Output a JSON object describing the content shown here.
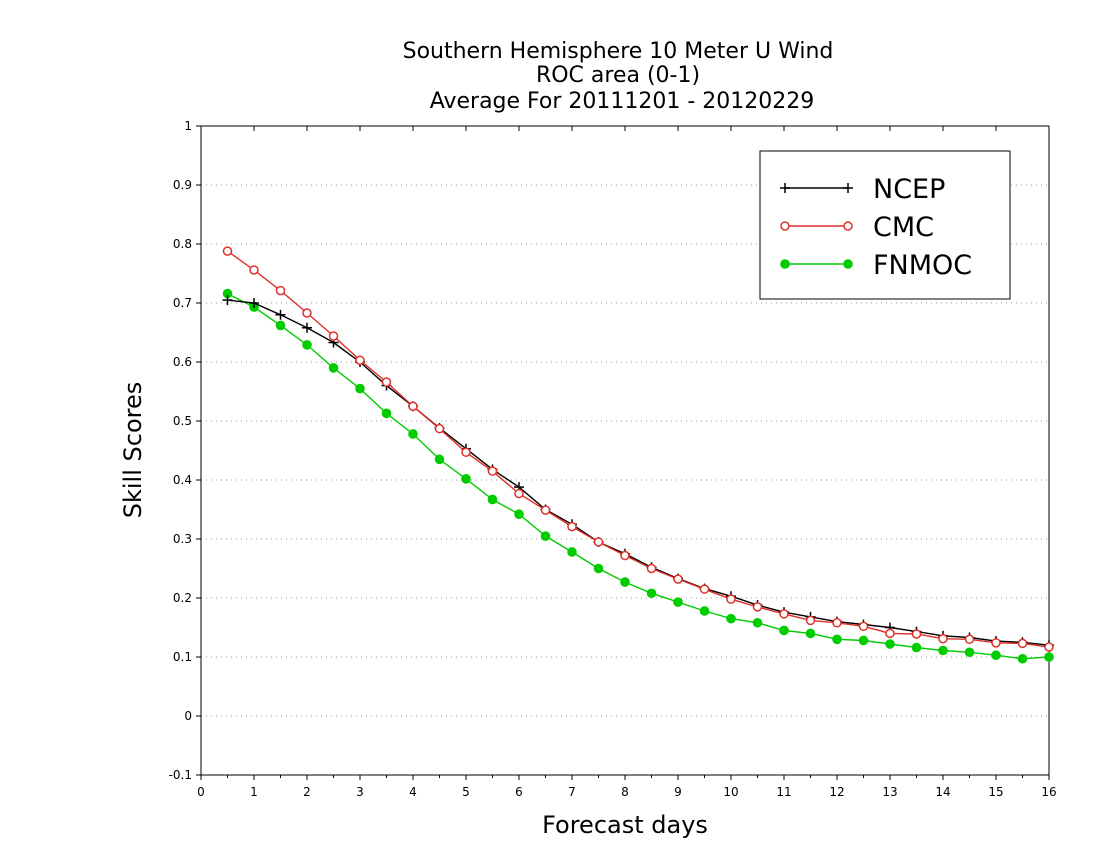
{
  "chart_data": {
    "type": "line",
    "title": [
      "Southern Hemisphere 10 Meter U Wind",
      "ROC area (0-1)",
      "Average For 20111201 - 20120229"
    ],
    "xlabel": "Forecast days",
    "ylabel": "Skill Scores",
    "xlim": [
      0,
      16
    ],
    "ylim": [
      -0.1,
      1
    ],
    "xticks": [
      0,
      1,
      2,
      3,
      4,
      5,
      6,
      7,
      8,
      9,
      10,
      11,
      12,
      13,
      14,
      15,
      16
    ],
    "yticks": [
      -0.1,
      0,
      0.1,
      0.2,
      0.3,
      0.4,
      0.5,
      0.6,
      0.7,
      0.8,
      0.9,
      1
    ],
    "ytick_labels": [
      "-0.1",
      "0",
      "0.1",
      "0.2",
      "0.3",
      "0.4",
      "0.5",
      "0.6",
      "0.7",
      "0.8",
      "0.9",
      "1"
    ],
    "grid": "horizontal-dotted",
    "legend_position": "top-right",
    "x": [
      0.5,
      1,
      1.5,
      2,
      2.5,
      3,
      3.5,
      4,
      4.5,
      5,
      5.5,
      6,
      6.5,
      7,
      7.5,
      8,
      8.5,
      9,
      9.5,
      10,
      10.5,
      11,
      11.5,
      12,
      12.5,
      13,
      13.5,
      14,
      14.5,
      15,
      15.5,
      16
    ],
    "series": [
      {
        "name": "NCEP",
        "color": "#000000",
        "marker": "plus",
        "values": [
          0.705,
          0.7,
          0.68,
          0.658,
          0.633,
          0.6,
          0.56,
          0.525,
          0.488,
          0.453,
          0.418,
          0.388,
          0.35,
          0.325,
          0.295,
          0.275,
          0.252,
          0.233,
          0.216,
          0.203,
          0.188,
          0.176,
          0.168,
          0.16,
          0.155,
          0.15,
          0.143,
          0.136,
          0.133,
          0.127,
          0.125,
          0.12
        ]
      },
      {
        "name": "CMC",
        "color": "#e0302a",
        "marker": "open-circle",
        "values": [
          0.788,
          0.756,
          0.721,
          0.683,
          0.644,
          0.603,
          0.566,
          0.525,
          0.487,
          0.447,
          0.415,
          0.377,
          0.349,
          0.321,
          0.295,
          0.272,
          0.25,
          0.232,
          0.215,
          0.198,
          0.185,
          0.173,
          0.162,
          0.158,
          0.152,
          0.14,
          0.139,
          0.131,
          0.13,
          0.124,
          0.123,
          0.117
        ]
      },
      {
        "name": "FNMOC",
        "color": "#00cc00",
        "marker": "filled-circle",
        "values": [
          0.716,
          0.693,
          0.662,
          0.629,
          0.59,
          0.555,
          0.513,
          0.478,
          0.435,
          0.402,
          0.367,
          0.342,
          0.305,
          0.278,
          0.25,
          0.227,
          0.208,
          0.193,
          0.178,
          0.165,
          0.158,
          0.145,
          0.14,
          0.13,
          0.128,
          0.122,
          0.116,
          0.111,
          0.108,
          0.103,
          0.097,
          0.1
        ]
      }
    ]
  }
}
